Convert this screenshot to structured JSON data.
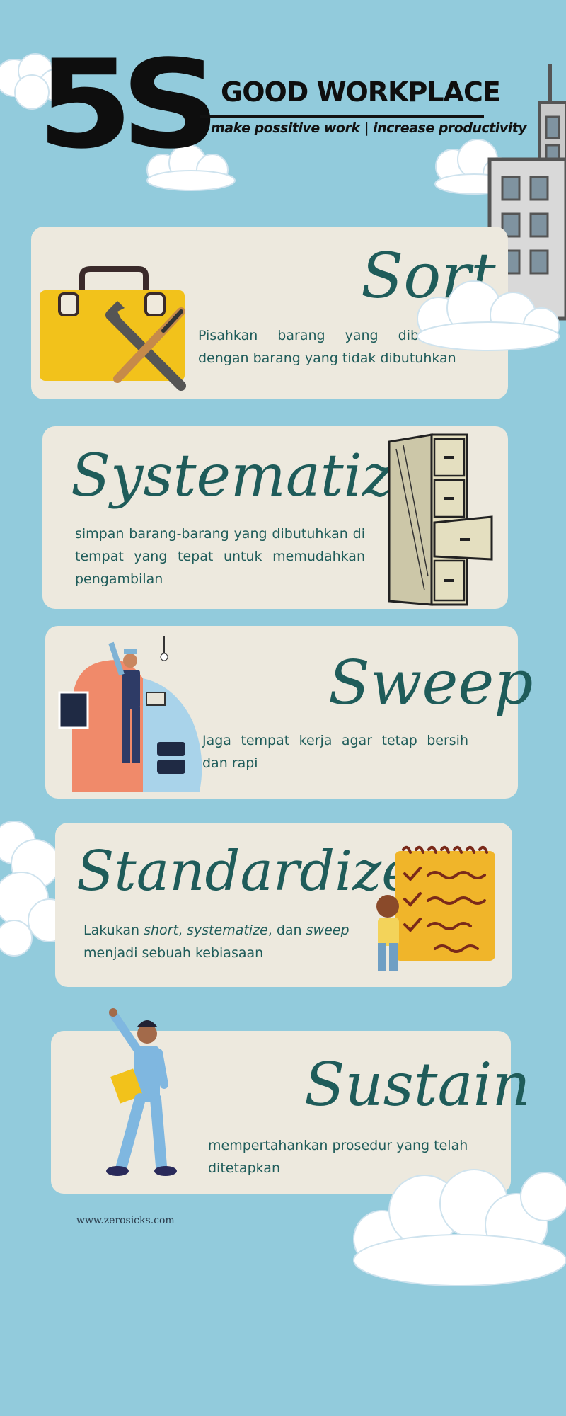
{
  "header": {
    "logo_text": "5S",
    "title": "GOOD WORKPLACE",
    "subtitle": "make possitive work | increase productivity"
  },
  "sections": [
    {
      "heading": "Sort",
      "text": "Pisahkan barang yang dibutuhkan dengan barang yang tidak dibutuhkan",
      "illustration": "toolbox-icon"
    },
    {
      "heading": "Systematize",
      "text": "simpan barang-barang yang dibutuhkan di tempat yang tepat untuk memudahkan pengambilan",
      "illustration": "filing-cabinet-icon"
    },
    {
      "heading": "Sweep",
      "text": "Jaga tempat kerja agar tetap bersih dan rapi",
      "illustration": "technician-icon"
    },
    {
      "heading": "Standardize",
      "text_parts": [
        "Lakukan ",
        "short",
        ", ",
        "systematize",
        ", dan ",
        "sweep",
        " menjadi sebuah kebiasaan"
      ],
      "illustration": "checklist-icon"
    },
    {
      "heading": "Sustain",
      "text": "mempertahankan prosedur yang telah ditetapkan",
      "illustration": "businessman-icon"
    }
  ],
  "footer": {
    "website": "www.zerosicks.com"
  },
  "colors": {
    "background": "#92cbdc",
    "card": "#ede9de",
    "heading": "#1f5c5a",
    "accent_yellow": "#f2c21b"
  }
}
